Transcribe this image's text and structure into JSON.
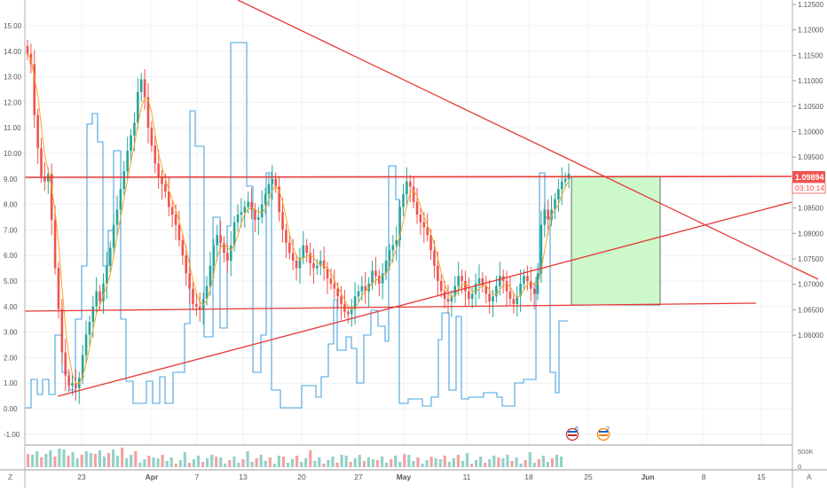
{
  "left_axis": {
    "labels": [
      "15.00",
      "14.00",
      "13.00",
      "12.00",
      "11.00",
      "10.00",
      "9.00",
      "8.00",
      "7.00",
      "6.00",
      "5.00",
      "4.00",
      "3.00",
      "2.00",
      "1.00",
      "0.00",
      "-1.00"
    ],
    "values": [
      15,
      14,
      13,
      12,
      11,
      10,
      9,
      8,
      7,
      6,
      5,
      4,
      3,
      2,
      1,
      0,
      -1
    ]
  },
  "right_axis": {
    "labels": [
      "1.12500",
      "1.12000",
      "1.11500",
      "1.11000",
      "1.10500",
      "1.10000",
      "1.09500",
      "1.09000",
      "1.08500",
      "1.08000",
      "1.07500",
      "1.07000",
      "1.06500",
      "1.06000"
    ],
    "values": [
      1.125,
      1.12,
      1.115,
      1.11,
      1.105,
      1.1,
      1.095,
      1.09,
      1.085,
      1.08,
      1.075,
      1.07,
      1.065,
      1.06
    ]
  },
  "price_tag": {
    "price": "1.09894",
    "countdown": "03:10:14",
    "color": "#ef5350"
  },
  "volume_axis": {
    "label_500k": "500K",
    "label_0": "0"
  },
  "time_axis": {
    "labels": [
      "23",
      "Apr",
      "7",
      "13",
      "20",
      "27",
      "May",
      "11",
      "18",
      "25",
      "Jun",
      "8",
      "15"
    ],
    "bold": [
      false,
      true,
      false,
      false,
      false,
      false,
      true,
      false,
      false,
      false,
      true,
      false,
      false
    ]
  },
  "corner": {
    "left": "Z",
    "right": "A"
  },
  "event_badges": [
    {
      "count": "6"
    },
    {
      "count": "2"
    }
  ],
  "colors": {
    "up": "#26a69a",
    "down": "#ef5350",
    "indicator": "#4aa3df",
    "trendline": "#e53935",
    "target_fill": "#c8f7c5",
    "target_border": "#4a4a4a"
  }
}
